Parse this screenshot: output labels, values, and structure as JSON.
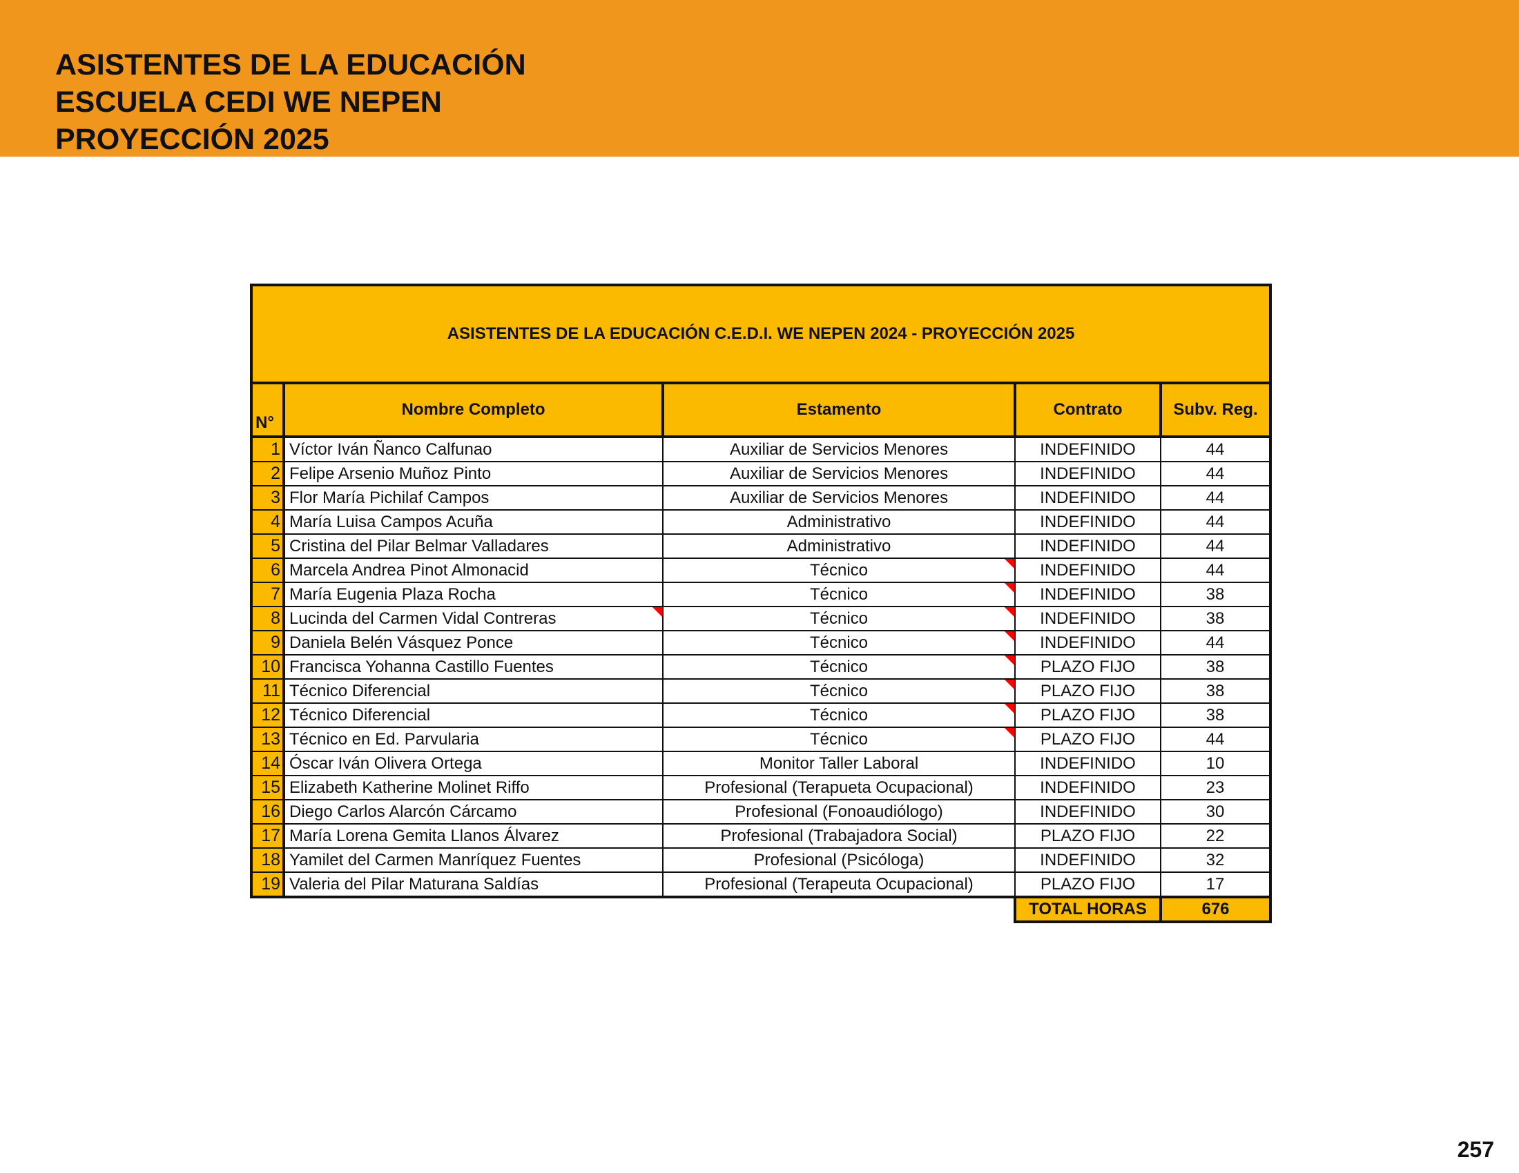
{
  "header": {
    "lines": [
      "ASISTENTES DE LA EDUCACIÓN",
      "ESCUELA CEDI WE NEPEN",
      "PROYECCIÓN 2025"
    ],
    "background": "#F0961C"
  },
  "table": {
    "title": "ASISTENTES DE LA EDUCACIÓN C.E.D.I. WE NEPEN 2024 - PROYECCIÓN 2025",
    "accent": "#FBBA00",
    "columns": [
      "N°",
      "Nombre Completo",
      "Estamento",
      "Contrato",
      "Subv. Reg."
    ],
    "rows": [
      {
        "n": "1",
        "name": "Víctor Iván Ñanco Calfunao",
        "estamento": "Auxiliar de Servicios Menores",
        "contrato": "INDEFINIDO",
        "subv": "44",
        "comment_name": false,
        "comment_est": false
      },
      {
        "n": "2",
        "name": "Felipe Arsenio Muñoz Pinto",
        "estamento": "Auxiliar de Servicios Menores",
        "contrato": "INDEFINIDO",
        "subv": "44",
        "comment_name": false,
        "comment_est": false
      },
      {
        "n": "3",
        "name": "Flor María Pichilaf Campos",
        "estamento": "Auxiliar de Servicios Menores",
        "contrato": "INDEFINIDO",
        "subv": "44",
        "comment_name": false,
        "comment_est": false
      },
      {
        "n": "4",
        "name": "María Luisa Campos Acuña",
        "estamento": "Administrativo",
        "contrato": "INDEFINIDO",
        "subv": "44",
        "comment_name": false,
        "comment_est": false
      },
      {
        "n": "5",
        "name": "Cristina del Pilar Belmar Valladares",
        "estamento": "Administrativo",
        "contrato": "INDEFINIDO",
        "subv": "44",
        "comment_name": false,
        "comment_est": false
      },
      {
        "n": "6",
        "name": "Marcela Andrea Pinot Almonacid",
        "estamento": "Técnico",
        "contrato": "INDEFINIDO",
        "subv": "44",
        "comment_name": false,
        "comment_est": true
      },
      {
        "n": "7",
        "name": "María Eugenia Plaza Rocha",
        "estamento": "Técnico",
        "contrato": "INDEFINIDO",
        "subv": "38",
        "comment_name": false,
        "comment_est": true
      },
      {
        "n": "8",
        "name": "Lucinda del Carmen Vidal Contreras",
        "estamento": "Técnico",
        "contrato": "INDEFINIDO",
        "subv": "38",
        "comment_name": true,
        "comment_est": true
      },
      {
        "n": "9",
        "name": "Daniela Belén Vásquez Ponce",
        "estamento": "Técnico",
        "contrato": "INDEFINIDO",
        "subv": "44",
        "comment_name": false,
        "comment_est": true
      },
      {
        "n": "10",
        "name": "Francisca Yohanna Castillo Fuentes",
        "estamento": "Técnico",
        "contrato": "PLAZO FIJO",
        "subv": "38",
        "comment_name": false,
        "comment_est": true
      },
      {
        "n": "11",
        "name": "Técnico Diferencial",
        "estamento": "Técnico",
        "contrato": "PLAZO FIJO",
        "subv": "38",
        "comment_name": false,
        "comment_est": true
      },
      {
        "n": "12",
        "name": "Técnico Diferencial",
        "estamento": "Técnico",
        "contrato": "PLAZO FIJO",
        "subv": "38",
        "comment_name": false,
        "comment_est": true
      },
      {
        "n": "13",
        "name": "Técnico en Ed. Parvularia",
        "estamento": "Técnico",
        "contrato": "PLAZO FIJO",
        "subv": "44",
        "comment_name": false,
        "comment_est": true
      },
      {
        "n": "14",
        "name": "Óscar Iván Olivera Ortega",
        "estamento": "Monitor Taller Laboral",
        "contrato": "INDEFINIDO",
        "subv": "10",
        "comment_name": false,
        "comment_est": false
      },
      {
        "n": "15",
        "name": "Elizabeth Katherine Molinet Riffo",
        "estamento": "Profesional (Terapueta Ocupacional)",
        "contrato": "INDEFINIDO",
        "subv": "23",
        "comment_name": false,
        "comment_est": false
      },
      {
        "n": "16",
        "name": "Diego Carlos Alarcón Cárcamo",
        "estamento": "Profesional (Fonoaudiólogo)",
        "contrato": "INDEFINIDO",
        "subv": "30",
        "comment_name": false,
        "comment_est": false
      },
      {
        "n": "17",
        "name": "María Lorena Gemita Llanos Álvarez",
        "estamento": "Profesional (Trabajadora Social)",
        "contrato": "PLAZO FIJO",
        "subv": "22",
        "comment_name": false,
        "comment_est": false
      },
      {
        "n": "18",
        "name": "Yamilet del Carmen Manríquez Fuentes",
        "estamento": "Profesional (Psicóloga)",
        "contrato": "INDEFINIDO",
        "subv": "32",
        "comment_name": false,
        "comment_est": false
      },
      {
        "n": "19",
        "name": "Valeria del Pilar Maturana Saldías",
        "estamento": "Profesional (Terapeuta Ocupacional)",
        "contrato": "PLAZO FIJO",
        "subv": "17",
        "comment_name": false,
        "comment_est": false
      }
    ],
    "total_label": "TOTAL HORAS",
    "total_value": "676"
  },
  "page_number": "257"
}
